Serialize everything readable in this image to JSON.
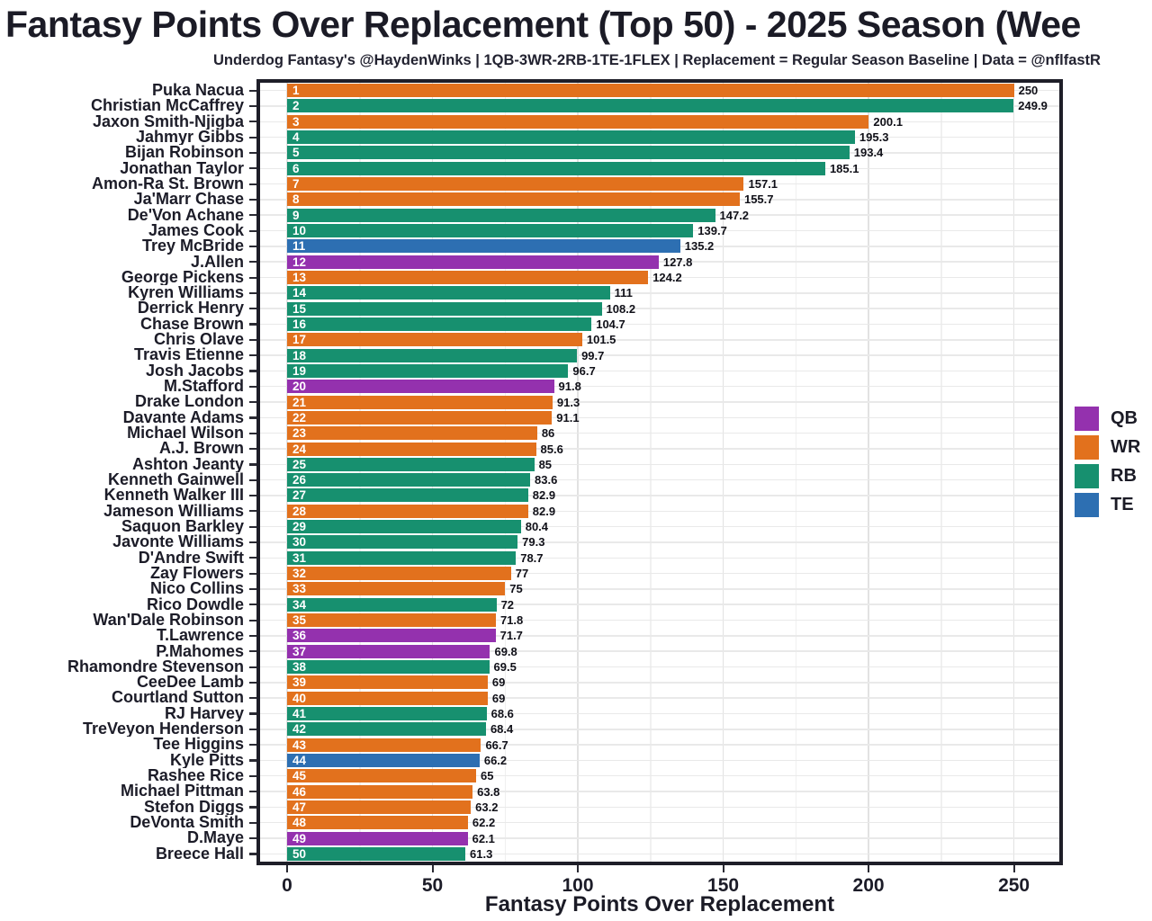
{
  "header": {
    "title": "Fantasy Points Over Replacement (Top 50) - 2025 Season (Wee",
    "subtitle": "Underdog Fantasy's @HaydenWinks | 1QB-3WR-2RB-1TE-1FLEX | Replacement = Regular Season Baseline | Data = @nflfastR"
  },
  "chart_data": {
    "type": "bar",
    "orientation": "horizontal",
    "title": "Fantasy Points Over Replacement (Top 50) - 2025 Season (Wee",
    "subtitle": "Underdog Fantasy's @HaydenWinks | 1QB-3WR-2RB-1TE-1FLEX | Replacement = Regular Season Baseline | Data = @nflfastR",
    "xlabel": "Fantasy Points Over Replacement",
    "ylabel": "",
    "xlim": [
      0,
      250
    ],
    "x_ticks": [
      "0",
      "50",
      "100",
      "150",
      "200",
      "250"
    ],
    "x_tick_values": [
      0,
      50,
      100,
      150,
      200,
      250
    ],
    "x_minor_tick_values": [
      25,
      75,
      125,
      175,
      225
    ],
    "grid": "on",
    "legend_position": "right",
    "position_colors": {
      "QB": "#9431ae",
      "WR": "#e2711d",
      "RB": "#17906f",
      "TE": "#2d6fb2"
    },
    "legend_items": [
      {
        "label": "QB",
        "color": "#9431ae"
      },
      {
        "label": "WR",
        "color": "#e2711d"
      },
      {
        "label": "RB",
        "color": "#17906f"
      },
      {
        "label": "TE",
        "color": "#2d6fb2"
      }
    ],
    "players": [
      {
        "rank": 1,
        "name": "Puka Nacua",
        "pos": "WR",
        "value": 250,
        "label": "250"
      },
      {
        "rank": 2,
        "name": "Christian McCaffrey",
        "pos": "RB",
        "value": 249.9,
        "label": "249.9"
      },
      {
        "rank": 3,
        "name": "Jaxon Smith-Njigba",
        "pos": "WR",
        "value": 200.1,
        "label": "200.1"
      },
      {
        "rank": 4,
        "name": "Jahmyr Gibbs",
        "pos": "RB",
        "value": 195.3,
        "label": "195.3"
      },
      {
        "rank": 5,
        "name": "Bijan Robinson",
        "pos": "RB",
        "value": 193.4,
        "label": "193.4"
      },
      {
        "rank": 6,
        "name": "Jonathan Taylor",
        "pos": "RB",
        "value": 185.1,
        "label": "185.1"
      },
      {
        "rank": 7,
        "name": "Amon-Ra St. Brown",
        "pos": "WR",
        "value": 157.1,
        "label": "157.1"
      },
      {
        "rank": 8,
        "name": "Ja'Marr Chase",
        "pos": "WR",
        "value": 155.7,
        "label": "155.7"
      },
      {
        "rank": 9,
        "name": "De'Von Achane",
        "pos": "RB",
        "value": 147.2,
        "label": "147.2"
      },
      {
        "rank": 10,
        "name": "James Cook",
        "pos": "RB",
        "value": 139.7,
        "label": "139.7"
      },
      {
        "rank": 11,
        "name": "Trey McBride",
        "pos": "TE",
        "value": 135.2,
        "label": "135.2"
      },
      {
        "rank": 12,
        "name": "J.Allen",
        "pos": "QB",
        "value": 127.8,
        "label": "127.8"
      },
      {
        "rank": 13,
        "name": "George Pickens",
        "pos": "WR",
        "value": 124.2,
        "label": "124.2"
      },
      {
        "rank": 14,
        "name": "Kyren Williams",
        "pos": "RB",
        "value": 111,
        "label": "111"
      },
      {
        "rank": 15,
        "name": "Derrick Henry",
        "pos": "RB",
        "value": 108.2,
        "label": "108.2"
      },
      {
        "rank": 16,
        "name": "Chase Brown",
        "pos": "RB",
        "value": 104.7,
        "label": "104.7"
      },
      {
        "rank": 17,
        "name": "Chris Olave",
        "pos": "WR",
        "value": 101.5,
        "label": "101.5"
      },
      {
        "rank": 18,
        "name": "Travis Etienne",
        "pos": "RB",
        "value": 99.7,
        "label": "99.7"
      },
      {
        "rank": 19,
        "name": "Josh Jacobs",
        "pos": "RB",
        "value": 96.7,
        "label": "96.7"
      },
      {
        "rank": 20,
        "name": "M.Stafford",
        "pos": "QB",
        "value": 91.8,
        "label": "91.8"
      },
      {
        "rank": 21,
        "name": "Drake London",
        "pos": "WR",
        "value": 91.3,
        "label": "91.3"
      },
      {
        "rank": 22,
        "name": "Davante Adams",
        "pos": "WR",
        "value": 91.1,
        "label": "91.1"
      },
      {
        "rank": 23,
        "name": "Michael Wilson",
        "pos": "WR",
        "value": 86,
        "label": "86"
      },
      {
        "rank": 24,
        "name": "A.J. Brown",
        "pos": "WR",
        "value": 85.6,
        "label": "85.6"
      },
      {
        "rank": 25,
        "name": "Ashton Jeanty",
        "pos": "RB",
        "value": 85,
        "label": "85"
      },
      {
        "rank": 26,
        "name": "Kenneth Gainwell",
        "pos": "RB",
        "value": 83.6,
        "label": "83.6"
      },
      {
        "rank": 27,
        "name": "Kenneth Walker III",
        "pos": "RB",
        "value": 82.9,
        "label": "82.9"
      },
      {
        "rank": 28,
        "name": "Jameson Williams",
        "pos": "WR",
        "value": 82.9,
        "label": "82.9"
      },
      {
        "rank": 29,
        "name": "Saquon Barkley",
        "pos": "RB",
        "value": 80.4,
        "label": "80.4"
      },
      {
        "rank": 30,
        "name": "Javonte Williams",
        "pos": "RB",
        "value": 79.3,
        "label": "79.3"
      },
      {
        "rank": 31,
        "name": "D'Andre Swift",
        "pos": "RB",
        "value": 78.7,
        "label": "78.7"
      },
      {
        "rank": 32,
        "name": "Zay Flowers",
        "pos": "WR",
        "value": 77,
        "label": "77"
      },
      {
        "rank": 33,
        "name": "Nico Collins",
        "pos": "WR",
        "value": 75,
        "label": "75"
      },
      {
        "rank": 34,
        "name": "Rico Dowdle",
        "pos": "RB",
        "value": 72,
        "label": "72"
      },
      {
        "rank": 35,
        "name": "Wan'Dale Robinson",
        "pos": "WR",
        "value": 71.8,
        "label": "71.8"
      },
      {
        "rank": 36,
        "name": "T.Lawrence",
        "pos": "QB",
        "value": 71.7,
        "label": "71.7"
      },
      {
        "rank": 37,
        "name": "P.Mahomes",
        "pos": "QB",
        "value": 69.8,
        "label": "69.8"
      },
      {
        "rank": 38,
        "name": "Rhamondre Stevenson",
        "pos": "RB",
        "value": 69.5,
        "label": "69.5"
      },
      {
        "rank": 39,
        "name": "CeeDee Lamb",
        "pos": "WR",
        "value": 69,
        "label": "69"
      },
      {
        "rank": 40,
        "name": "Courtland Sutton",
        "pos": "WR",
        "value": 69,
        "label": "69"
      },
      {
        "rank": 41,
        "name": "RJ Harvey",
        "pos": "RB",
        "value": 68.6,
        "label": "68.6"
      },
      {
        "rank": 42,
        "name": "TreVeyon Henderson",
        "pos": "RB",
        "value": 68.4,
        "label": "68.4"
      },
      {
        "rank": 43,
        "name": "Tee Higgins",
        "pos": "WR",
        "value": 66.7,
        "label": "66.7"
      },
      {
        "rank": 44,
        "name": "Kyle Pitts",
        "pos": "TE",
        "value": 66.2,
        "label": "66.2"
      },
      {
        "rank": 45,
        "name": "Rashee Rice",
        "pos": "WR",
        "value": 65,
        "label": "65"
      },
      {
        "rank": 46,
        "name": "Michael Pittman",
        "pos": "WR",
        "value": 63.8,
        "label": "63.8"
      },
      {
        "rank": 47,
        "name": "Stefon Diggs",
        "pos": "WR",
        "value": 63.2,
        "label": "63.2"
      },
      {
        "rank": 48,
        "name": "DeVonta Smith",
        "pos": "WR",
        "value": 62.2,
        "label": "62.2"
      },
      {
        "rank": 49,
        "name": "D.Maye",
        "pos": "QB",
        "value": 62.1,
        "label": "62.1"
      },
      {
        "rank": 50,
        "name": "Breece Hall",
        "pos": "RB",
        "value": 61.3,
        "label": "61.3"
      }
    ]
  }
}
